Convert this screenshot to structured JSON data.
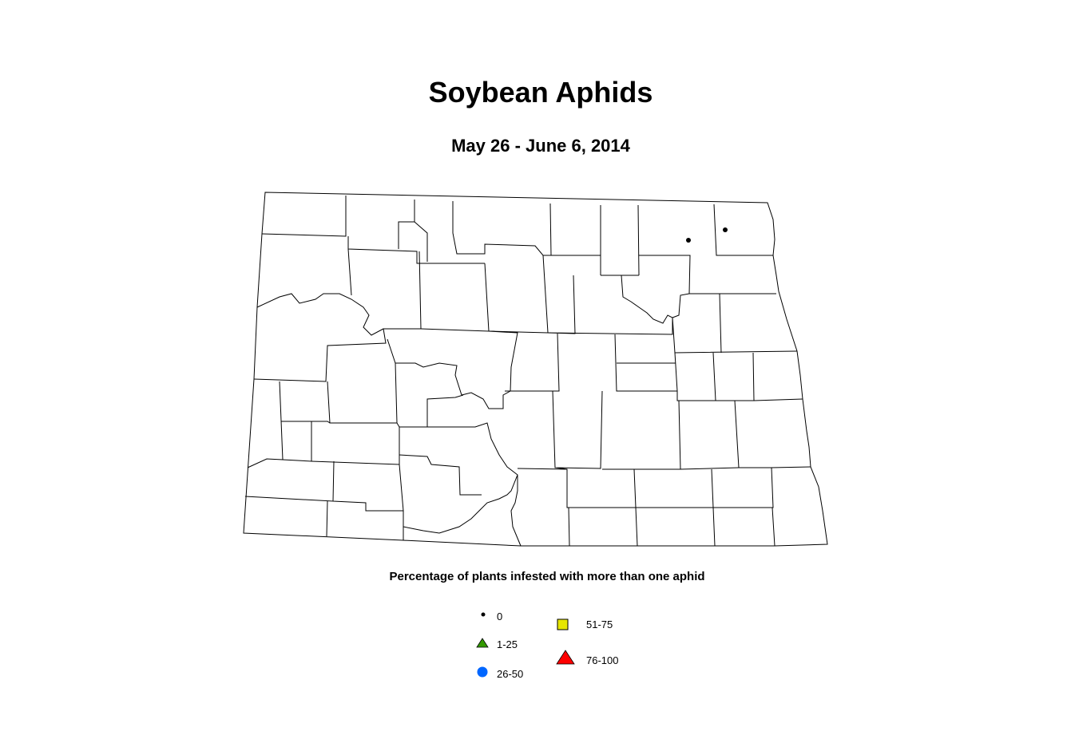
{
  "title": "Soybean Aphids",
  "subtitle": "May 26 - June 6, 2014",
  "legend": {
    "title": "Percentage of plants infested with more than one aphid",
    "items": [
      {
        "label": "0",
        "symbol": "small-dot-icon",
        "color": "#000000"
      },
      {
        "label": "1-25",
        "symbol": "triangle-icon",
        "color": "#339900"
      },
      {
        "label": "26-50",
        "symbol": "circle-icon",
        "color": "#0066ff"
      },
      {
        "label": "51-75",
        "symbol": "square-icon",
        "color": "#e6e600"
      },
      {
        "label": "76-100",
        "symbol": "triangle-icon",
        "color": "#ff0000"
      }
    ]
  },
  "observations": [
    {
      "category": "0"
    },
    {
      "category": "0"
    }
  ]
}
